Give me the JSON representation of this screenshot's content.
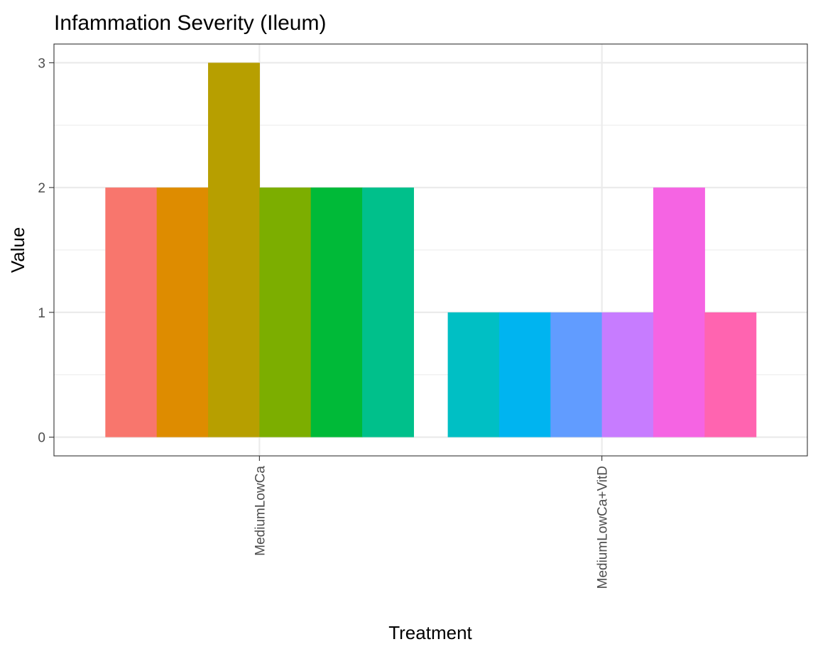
{
  "chart_data": {
    "type": "bar",
    "title": "Infammation Severity (Ileum)",
    "xlabel": "Treatment",
    "ylabel": "Value",
    "ylim": [
      -0.15,
      3.15
    ],
    "yticks": [
      0,
      1,
      2,
      3
    ],
    "grid": true,
    "legend": "none",
    "categories": [
      "MediumLowCa",
      "MediumLowCa+VitD"
    ],
    "groups": [
      {
        "category": "MediumLowCa",
        "values": [
          2,
          2,
          3,
          2,
          2,
          2
        ],
        "colors": [
          "#F8766D",
          "#DE8C00",
          "#B79F00",
          "#7CAE00",
          "#00BA38",
          "#00C08B"
        ]
      },
      {
        "category": "MediumLowCa+VitD",
        "values": [
          1,
          1,
          1,
          1,
          2,
          1
        ],
        "colors": [
          "#00BFC4",
          "#00B4F0",
          "#619CFF",
          "#C77CFF",
          "#F564E3",
          "#FF64B0"
        ]
      }
    ]
  }
}
